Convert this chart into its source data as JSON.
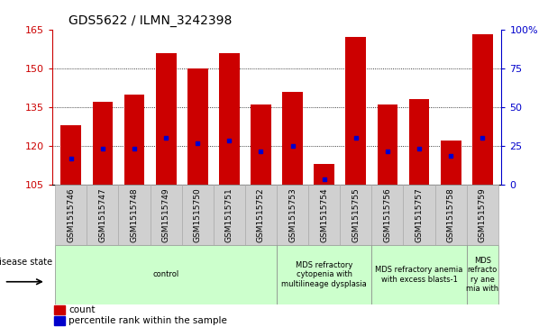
{
  "title": "GDS5622 / ILMN_3242398",
  "samples": [
    "GSM1515746",
    "GSM1515747",
    "GSM1515748",
    "GSM1515749",
    "GSM1515750",
    "GSM1515751",
    "GSM1515752",
    "GSM1515753",
    "GSM1515754",
    "GSM1515755",
    "GSM1515756",
    "GSM1515757",
    "GSM1515758",
    "GSM1515759"
  ],
  "bar_tops": [
    128,
    137,
    140,
    156,
    150,
    156,
    136,
    141,
    113,
    162,
    136,
    138,
    122,
    163
  ],
  "bar_bottom": 105,
  "blue_dot_values": [
    115,
    119,
    119,
    123,
    121,
    122,
    118,
    120,
    107,
    123,
    118,
    119,
    116,
    123
  ],
  "ylim_left": [
    105,
    165
  ],
  "ylim_right": [
    0,
    100
  ],
  "yticks_left": [
    105,
    120,
    135,
    150,
    165
  ],
  "yticks_right": [
    0,
    25,
    50,
    75,
    100
  ],
  "ytick_labels_left": [
    "105",
    "120",
    "135",
    "150",
    "165"
  ],
  "ytick_labels_right": [
    "0",
    "25",
    "50",
    "75",
    "100%"
  ],
  "left_axis_color": "#cc0000",
  "right_axis_color": "#0000cc",
  "bar_color": "#cc0000",
  "dot_color": "#0000cc",
  "grid_color": "#000000",
  "disease_groups": [
    {
      "label": "control",
      "start": 0,
      "end": 7
    },
    {
      "label": "MDS refractory\ncytopenia with\nmultilineage dysplasia",
      "start": 7,
      "end": 10
    },
    {
      "label": "MDS refractory anemia\nwith excess blasts-1",
      "start": 10,
      "end": 13
    },
    {
      "label": "MDS\nrefracto\nry ane\nmia with",
      "start": 13,
      "end": 14
    }
  ],
  "disease_state_label": "disease state",
  "group_color": "#ccffcc",
  "sample_bg_color": "#d0d0d0",
  "sample_border_color": "#aaaaaa"
}
